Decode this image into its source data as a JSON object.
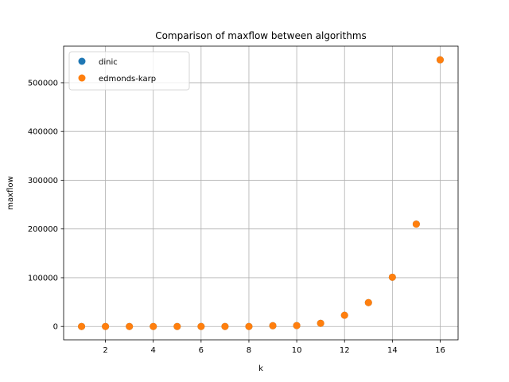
{
  "chart_data": {
    "type": "scatter",
    "title": "Comparison of maxflow between algorithms",
    "xlabel": "k",
    "ylabel": "maxflow",
    "xlim": [
      0.25,
      16.75
    ],
    "ylim": [
      -27400,
      575000
    ],
    "x_ticks": [
      2,
      4,
      6,
      8,
      10,
      12,
      14,
      16
    ],
    "y_ticks": [
      0,
      100000,
      200000,
      300000,
      400000,
      500000
    ],
    "grid": true,
    "legend": "top-left",
    "series": [
      {
        "name": "dinic",
        "color": "#1f77b4",
        "x": [
          1,
          2,
          3,
          4,
          5,
          6,
          7,
          8,
          9,
          10,
          11,
          12,
          13,
          14,
          15,
          16
        ],
        "y": [
          0,
          0,
          0,
          0,
          0,
          0,
          0,
          0,
          1500,
          1800,
          6500,
          23000,
          49000,
          101000,
          210000,
          547000
        ]
      },
      {
        "name": "edmonds-karp",
        "color": "#ff7f0e",
        "x": [
          1,
          2,
          3,
          4,
          5,
          6,
          7,
          8,
          9,
          10,
          11,
          12,
          13,
          14,
          15,
          16
        ],
        "y": [
          0,
          0,
          0,
          0,
          0,
          0,
          0,
          0,
          1500,
          1800,
          6500,
          23000,
          49000,
          101000,
          210000,
          547000
        ]
      }
    ]
  }
}
